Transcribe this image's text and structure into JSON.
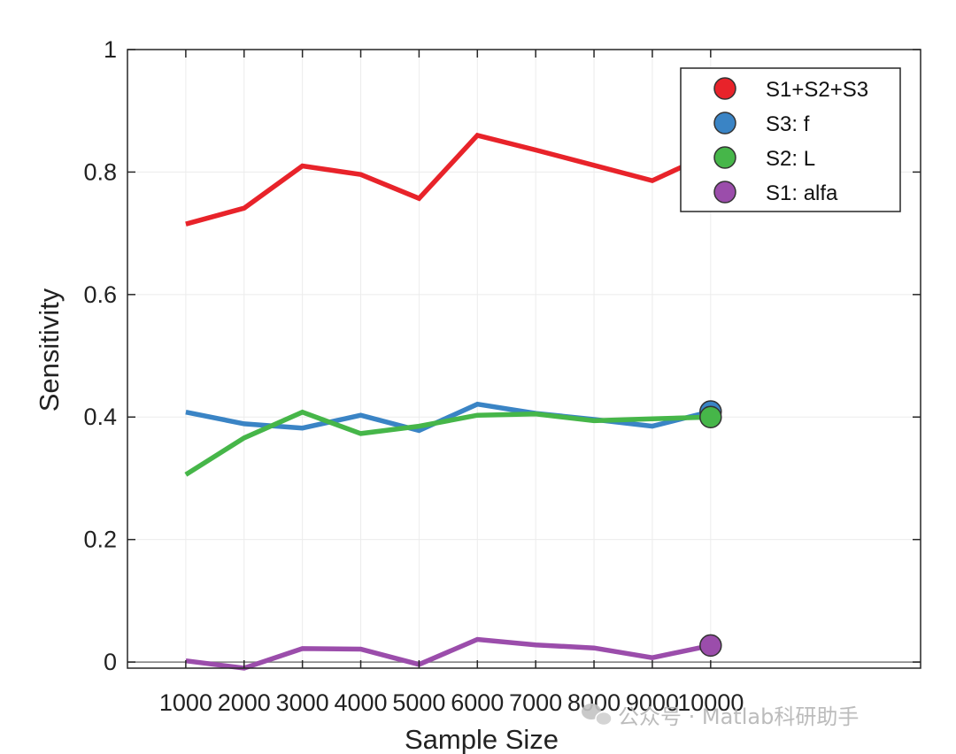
{
  "chart_data": {
    "type": "line",
    "xlabel": "Sample Size",
    "ylabel": "Sensitivity",
    "x": [
      1000,
      2000,
      3000,
      4000,
      5000,
      6000,
      7000,
      8000,
      9000,
      10000
    ],
    "x_tick_labels": [
      "1000",
      "2000",
      "3000",
      "4000",
      "5000",
      "6000",
      "7000",
      "8000",
      "9000",
      "10000"
    ],
    "y_tick_labels": [
      "0",
      "0.2",
      "0.4",
      "0.6",
      "0.8",
      "1"
    ],
    "xlim": [
      0,
      13600
    ],
    "ylim": [
      -0.01,
      1.0
    ],
    "grid": true,
    "legend_position": "top-right",
    "series": [
      {
        "name": "S1+S2+S3",
        "color": "#e8232a",
        "values": [
          0.715,
          0.741,
          0.81,
          0.796,
          0.757,
          0.86,
          0.836,
          0.811,
          0.786,
          0.83
        ]
      },
      {
        "name": "S3: f",
        "color": "#3a84c5",
        "values": [
          0.408,
          0.389,
          0.382,
          0.403,
          0.378,
          0.421,
          0.406,
          0.396,
          0.385,
          0.409
        ]
      },
      {
        "name": "S2: L",
        "color": "#46b649",
        "values": [
          0.306,
          0.366,
          0.408,
          0.373,
          0.385,
          0.403,
          0.405,
          0.394,
          0.397,
          0.4
        ]
      },
      {
        "name": "S1: alfa",
        "color": "#9b4dab",
        "values": [
          0.002,
          -0.01,
          0.022,
          0.021,
          -0.004,
          0.037,
          0.028,
          0.023,
          0.007,
          0.027
        ]
      }
    ]
  },
  "watermark": {
    "icon": "wechat-icon",
    "text": "公众号 · Matlab科研助手"
  }
}
